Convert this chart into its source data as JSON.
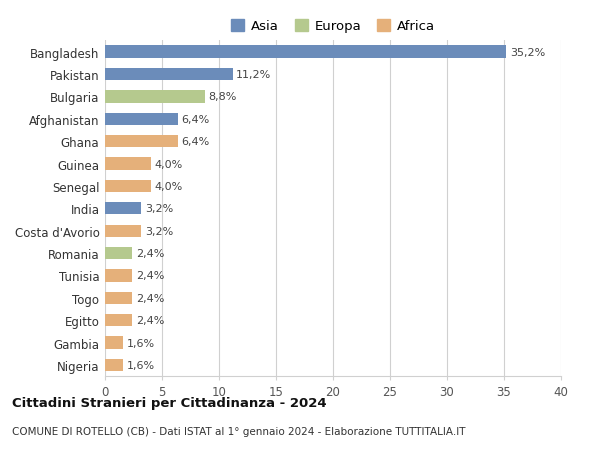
{
  "categories": [
    "Bangladesh",
    "Pakistan",
    "Bulgaria",
    "Afghanistan",
    "Ghana",
    "Guinea",
    "Senegal",
    "India",
    "Costa d'Avorio",
    "Romania",
    "Tunisia",
    "Togo",
    "Egitto",
    "Gambia",
    "Nigeria"
  ],
  "values": [
    35.2,
    11.2,
    8.8,
    6.4,
    6.4,
    4.0,
    4.0,
    3.2,
    3.2,
    2.4,
    2.4,
    2.4,
    2.4,
    1.6,
    1.6
  ],
  "labels": [
    "35,2%",
    "11,2%",
    "8,8%",
    "6,4%",
    "6,4%",
    "4,0%",
    "4,0%",
    "3,2%",
    "3,2%",
    "2,4%",
    "2,4%",
    "2,4%",
    "2,4%",
    "1,6%",
    "1,6%"
  ],
  "continents": [
    "Asia",
    "Asia",
    "Europa",
    "Asia",
    "Africa",
    "Africa",
    "Africa",
    "Asia",
    "Africa",
    "Europa",
    "Africa",
    "Africa",
    "Africa",
    "Africa",
    "Africa"
  ],
  "colors": {
    "Asia": "#6b8cba",
    "Europa": "#b5c98e",
    "Africa": "#e5b07a"
  },
  "xlim": [
    0,
    40
  ],
  "xticks": [
    0,
    5,
    10,
    15,
    20,
    25,
    30,
    35,
    40
  ],
  "title": "Cittadini Stranieri per Cittadinanza - 2024",
  "subtitle": "COMUNE DI ROTELLO (CB) - Dati ISTAT al 1° gennaio 2024 - Elaborazione TUTTITALIA.IT",
  "background_color": "#ffffff",
  "grid_color": "#d0d0d0",
  "bar_height": 0.55
}
